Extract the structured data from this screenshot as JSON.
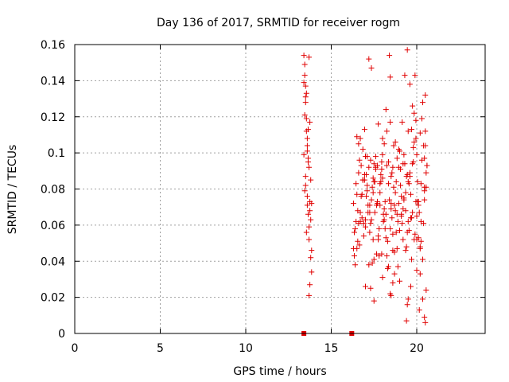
{
  "chart_data": {
    "type": "scatter",
    "title": "Day 136 of 2017, SRMTID for receiver rogm",
    "xlabel": "GPS time / hours",
    "ylabel": "SRMTID / TECUs",
    "xlim": [
      0,
      24
    ],
    "ylim": [
      0,
      0.16
    ],
    "xticks": [
      "0",
      "5",
      "10",
      "15",
      "20"
    ],
    "yticks": [
      "0",
      "0.02",
      "0.04",
      "0.06",
      "0.08",
      "0.1",
      "0.12",
      "0.14",
      "0.16"
    ],
    "grid": true,
    "marker": "plus",
    "color": "#e00000",
    "zero_markers_x": [
      13.4,
      16.2
    ],
    "series": [
      {
        "name": "SRMTID",
        "x": [
          13.4,
          13.45,
          13.5,
          13.55,
          13.6,
          13.65,
          13.7,
          13.75,
          13.8,
          13.85,
          13.4,
          13.5,
          13.6,
          13.7,
          13.8,
          13.45,
          13.55,
          13.65,
          13.75,
          13.85,
          13.4,
          13.5,
          13.6,
          13.7,
          13.8,
          13.45,
          13.55,
          13.65,
          13.75,
          13.85,
          13.5,
          13.6,
          13.7,
          13.55,
          13.65,
          13.75,
          13.45,
          13.7,
          13.6,
          13.5,
          16.3,
          16.45,
          16.6,
          16.75,
          16.9,
          17.05,
          17.2,
          17.35,
          17.5,
          17.65,
          17.8,
          17.95,
          18.1,
          18.25,
          18.4,
          18.55,
          18.7,
          18.85,
          19.0,
          19.15,
          19.3,
          19.45,
          19.6,
          19.75,
          19.9,
          20.05,
          20.2,
          20.35,
          20.5,
          20.6,
          16.35,
          16.5,
          16.65,
          16.8,
          16.95,
          17.1,
          17.25,
          17.4,
          17.55,
          17.7,
          17.85,
          18.0,
          18.15,
          18.3,
          18.45,
          18.6,
          18.75,
          18.9,
          19.05,
          19.2,
          19.35,
          19.5,
          19.65,
          19.8,
          19.95,
          20.1,
          20.25,
          20.4,
          20.55,
          20.45,
          16.4,
          16.55,
          16.7,
          16.85,
          17.0,
          17.15,
          17.3,
          17.45,
          17.6,
          17.75,
          17.9,
          18.05,
          18.2,
          18.35,
          18.5,
          18.65,
          18.8,
          18.95,
          19.1,
          19.25,
          19.4,
          19.55,
          19.7,
          19.85,
          20.0,
          20.15,
          20.3,
          20.45,
          20.6,
          20.2,
          16.3,
          16.5,
          16.7,
          16.9,
          17.1,
          17.3,
          17.5,
          17.7,
          17.9,
          18.1,
          18.3,
          18.5,
          18.7,
          18.9,
          19.1,
          19.3,
          19.5,
          19.7,
          19.9,
          20.1,
          20.3,
          20.5,
          16.4,
          16.6,
          16.8,
          17.0,
          17.2,
          17.4,
          17.6,
          17.8,
          18.0,
          18.2,
          18.4,
          18.6,
          18.8,
          19.0,
          19.2,
          19.4,
          19.6,
          19.8,
          20.0,
          20.2,
          20.4,
          16.45,
          16.65,
          16.85,
          17.05,
          17.25,
          17.45,
          17.65,
          17.85,
          18.05,
          18.25,
          18.45,
          18.65,
          18.85,
          19.05,
          19.25,
          19.45,
          19.65,
          19.85,
          20.05,
          20.25,
          20.45,
          16.55,
          16.75,
          16.95,
          17.15,
          17.35,
          17.55,
          17.75,
          17.95,
          18.15,
          18.35,
          18.55,
          18.75,
          18.95,
          19.15,
          19.35,
          19.55,
          19.75,
          19.95,
          20.15,
          20.35,
          20.55,
          18.45,
          19.45,
          19.65,
          20.45,
          20.5,
          16.35,
          16.6,
          16.85,
          17.1,
          17.35,
          17.6,
          17.85,
          18.1,
          18.35,
          18.6,
          18.85,
          19.1,
          19.35,
          19.6,
          19.85,
          20.1,
          20.35,
          20.55,
          17.0,
          17.5,
          18.0,
          18.5,
          19.0,
          19.5,
          20.0,
          17.25,
          17.75,
          18.25,
          18.75,
          19.25,
          19.75,
          20.25,
          16.7,
          17.2,
          17.7,
          18.2,
          18.7,
          19.2,
          19.7,
          20.2,
          16.95,
          17.45,
          17.95,
          18.45,
          18.95,
          19.45,
          19.95,
          20.45,
          16.5,
          17.0,
          17.5,
          18.0,
          18.5,
          19.0,
          19.5,
          20.0,
          20.5,
          18.6,
          19.4,
          17.3
        ],
        "y": [
          0.154,
          0.143,
          0.131,
          0.119,
          0.108,
          0.097,
          0.153,
          0.117,
          0.085,
          0.072,
          0.139,
          0.128,
          0.101,
          0.092,
          0.063,
          0.121,
          0.112,
          0.095,
          0.073,
          0.046,
          0.099,
          0.082,
          0.071,
          0.059,
          0.042,
          0.149,
          0.133,
          0.113,
          0.068,
          0.034,
          0.087,
          0.076,
          0.052,
          0.056,
          0.066,
          0.027,
          0.079,
          0.021,
          0.104,
          0.137,
          0.072,
          0.083,
          0.105,
          0.093,
          0.061,
          0.088,
          0.152,
          0.147,
          0.084,
          0.071,
          0.058,
          0.095,
          0.063,
          0.112,
          0.154,
          0.089,
          0.071,
          0.066,
          0.101,
          0.117,
          0.143,
          0.157,
          0.138,
          0.126,
          0.143,
          0.084,
          0.111,
          0.128,
          0.132,
          0.093,
          0.056,
          0.047,
          0.096,
          0.064,
          0.113,
          0.082,
          0.071,
          0.039,
          0.067,
          0.093,
          0.078,
          0.099,
          0.058,
          0.051,
          0.142,
          0.046,
          0.106,
          0.037,
          0.082,
          0.094,
          0.068,
          0.062,
          0.077,
          0.095,
          0.108,
          0.073,
          0.083,
          0.104,
          0.089,
          0.074,
          0.038,
          0.068,
          0.108,
          0.085,
          0.059,
          0.071,
          0.096,
          0.052,
          0.091,
          0.116,
          0.088,
          0.062,
          0.124,
          0.083,
          0.069,
          0.104,
          0.056,
          0.092,
          0.065,
          0.099,
          0.087,
          0.057,
          0.113,
          0.122,
          0.052,
          0.067,
          0.096,
          0.079,
          0.093,
          0.033,
          0.047,
          0.109,
          0.067,
          0.054,
          0.098,
          0.061,
          0.041,
          0.073,
          0.084,
          0.105,
          0.036,
          0.072,
          0.045,
          0.062,
          0.076,
          0.094,
          0.084,
          0.041,
          0.055,
          0.071,
          0.119,
          0.112,
          0.058,
          0.089,
          0.077,
          0.063,
          0.092,
          0.081,
          0.098,
          0.043,
          0.086,
          0.053,
          0.074,
          0.092,
          0.084,
          0.057,
          0.069,
          0.048,
          0.087,
          0.103,
          0.065,
          0.048,
          0.061,
          0.062,
          0.049,
          0.102,
          0.076,
          0.056,
          0.086,
          0.044,
          0.071,
          0.066,
          0.093,
          0.058,
          0.081,
          0.047,
          0.091,
          0.075,
          0.088,
          0.064,
          0.052,
          0.073,
          0.062,
          0.097,
          0.051,
          0.076,
          0.088,
          0.067,
          0.063,
          0.084,
          0.052,
          0.044,
          0.073,
          0.095,
          0.064,
          0.078,
          0.102,
          0.061,
          0.046,
          0.083,
          0.067,
          0.118,
          0.013,
          0.019,
          0.024,
          0.022,
          0.016,
          0.026,
          0.009,
          0.006,
          0.043,
          0.061,
          0.085,
          0.079,
          0.074,
          0.092,
          0.083,
          0.069,
          0.037,
          0.055,
          0.097,
          0.066,
          0.078,
          0.089,
          0.106,
          0.053,
          0.041,
          0.081,
          0.026,
          0.018,
          0.031,
          0.021,
          0.029,
          0.019,
          0.035,
          0.067,
          0.054,
          0.043,
          0.068,
          0.074,
          0.094,
          0.051,
          0.062,
          0.038,
          0.072,
          0.066,
          0.033,
          0.052,
          0.064,
          0.047,
          0.085,
          0.078,
          0.091,
          0.117,
          0.072,
          0.056,
          0.073,
          0.081,
          0.077,
          0.098,
          0.094,
          0.108,
          0.087,
          0.101,
          0.112,
          0.099,
          0.104,
          0.028,
          0.007,
          0.025
        ]
      }
    ]
  }
}
